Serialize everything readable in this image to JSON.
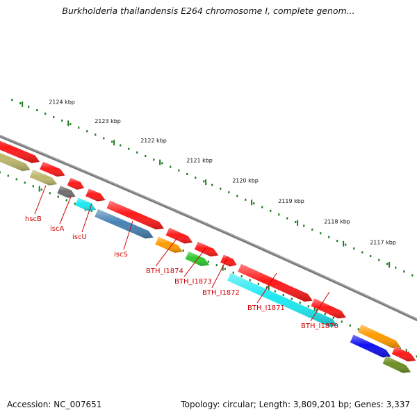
{
  "title": "Burkholderia thailandensis E264 chromosome I, complete genom...",
  "footer": {
    "accession": "Accession: NC_007651",
    "stats": "Topology: circular; Length: 3,809,201 bp; Genes: 3,337"
  },
  "scale_ticks": [
    "2124 kbp",
    "2123 kbp",
    "2122 kbp",
    "2121 kbp",
    "2120 kbp",
    "2119 kbp",
    "2118 kbp",
    "2117 kbp"
  ],
  "gene_labels": [
    "hscB",
    "iscA",
    "iscU",
    "iscS",
    "BTH_I1874",
    "BTH_I1873",
    "BTH_I1872",
    "BTH_I1871",
    "BTH_I1870"
  ],
  "colors": {
    "red": "#ff1a1a",
    "olive": "#bdb76b",
    "gray": "#6e6e6e",
    "cyan": "#1de8f0",
    "steelblue": "#4682b4",
    "orange": "#ff9a00",
    "green": "#2ec82e",
    "blue": "#1010ee",
    "darkolive": "#6b8e23",
    "backbone": "#7a7a7a",
    "dotted": "#1e7a1e",
    "label": "#cc0000"
  }
}
